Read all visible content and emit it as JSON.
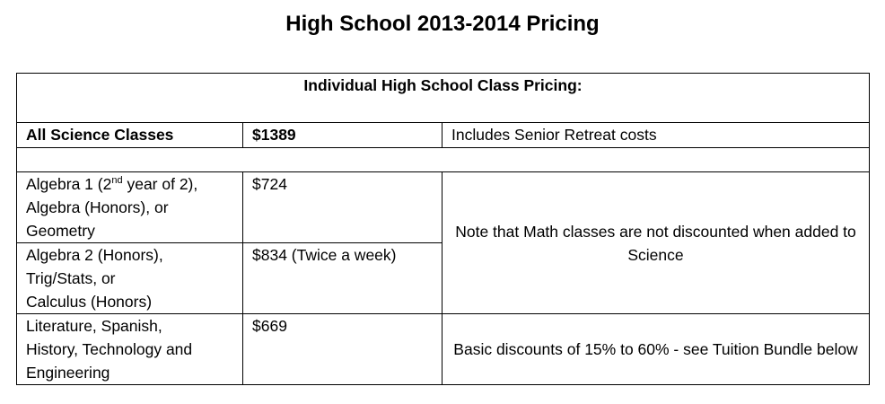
{
  "page": {
    "title": "High School 2013-2014 Pricing"
  },
  "table": {
    "header": "Individual High School Class Pricing:",
    "science": {
      "label": "All Science Classes",
      "price": "$1389",
      "note": "Includes Senior Retreat costs"
    },
    "math1": {
      "label_before_sup": "Algebra 1 (2",
      "label_sup": "nd",
      "label_after_sup": " year of 2),",
      "label_line2": "Algebra (Honors), or",
      "label_line3": "Geometry",
      "price": "$724"
    },
    "math2": {
      "label_line1": "Algebra 2 (Honors),",
      "label_line2": "Trig/Stats, or",
      "label_line3": "Calculus (Honors)",
      "price": "$834 (Twice a week)"
    },
    "math_note": "Note that Math classes are not discounted when added to Science",
    "other": {
      "label_line1": "Literature, Spanish,",
      "label_line2": "History, Technology and",
      "label_line3": "Engineering",
      "price": "$669",
      "note": "Basic discounts of 15% to 60% - see Tuition Bundle below"
    }
  }
}
